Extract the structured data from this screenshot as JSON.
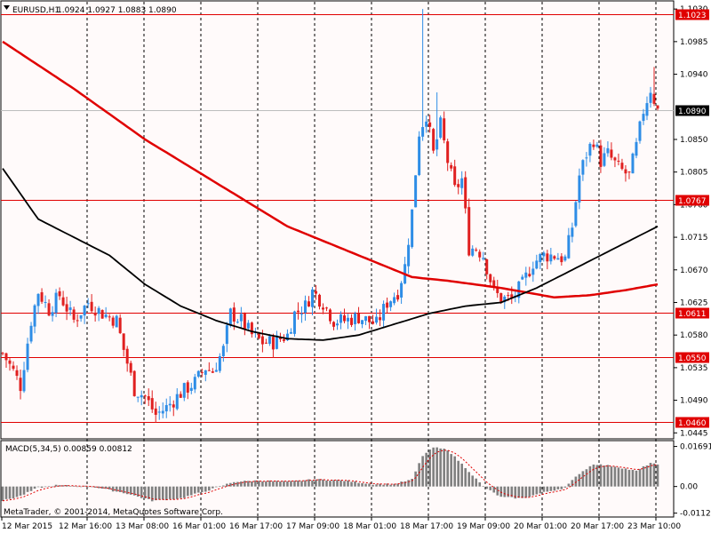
{
  "window": {
    "symbol_label": "EURUSD,H1",
    "ohlc_label": "1.0924 1.0927 1.0883 1.0890"
  },
  "macd": {
    "label": "MACD(5,34,5) 0.00859 0.00812",
    "ticks": [
      "0.01691",
      "0.00",
      "-0.01124"
    ]
  },
  "copyright": "MetaTrader, © 2001-2014, MetaQuotes Software Corp.",
  "colors": {
    "background": "#fffafa",
    "grid": "#000000",
    "level": "#e00000",
    "bull": "#2e8de6",
    "bear": "#e02020",
    "ma_fast": "#000000",
    "ma_slow": "#e00000",
    "macd_hist": "#808080",
    "macd_signal": "#e00000"
  },
  "chart_data": {
    "type": "candlestick",
    "ylim": [
      1.0438,
      1.104
    ],
    "price_ticks": [
      "1.1030",
      "1.0985",
      "1.0940",
      "1.0850",
      "1.0805",
      "1.0760",
      "1.0715",
      "1.0670",
      "1.0625",
      "1.0580",
      "1.0535",
      "1.0490",
      "1.0445"
    ],
    "levels": [
      {
        "value": 1.1023,
        "label": "1.1023"
      },
      {
        "value": 1.0767,
        "label": "1.0767"
      },
      {
        "value": 1.0611,
        "label": "1.0611"
      },
      {
        "value": 1.055,
        "label": "1.0550"
      },
      {
        "value": 1.046,
        "label": "1.0460"
      }
    ],
    "current_price": {
      "value": 1.089,
      "label": "1.0890"
    },
    "time_labels": [
      "12 Mar 2015",
      "12 Mar 16:00",
      "13 Mar 08:00",
      "16 Mar 01:00",
      "16 Mar 17:00",
      "17 Mar 09:00",
      "18 Mar 01:00",
      "18 Mar 17:00",
      "19 Mar 09:00",
      "20 Mar 01:00",
      "20 Mar 17:00",
      "23 Mar 10:00"
    ],
    "close_path": [
      [
        0,
        1.0555
      ],
      [
        3,
        1.053
      ],
      [
        5,
        1.051
      ],
      [
        8,
        1.06
      ],
      [
        10,
        1.064
      ],
      [
        13,
        1.0615
      ],
      [
        16,
        1.0635
      ],
      [
        20,
        1.06
      ],
      [
        24,
        1.0625
      ],
      [
        28,
        1.061
      ],
      [
        32,
        1.06
      ],
      [
        34,
        1.056
      ],
      [
        37,
        1.0505
      ],
      [
        40,
        1.0495
      ],
      [
        43,
        1.047
      ],
      [
        46,
        1.048
      ],
      [
        50,
        1.05
      ],
      [
        54,
        1.0515
      ],
      [
        57,
        1.0535
      ],
      [
        59,
        1.053
      ],
      [
        62,
        1.056
      ],
      [
        64,
        1.061
      ],
      [
        67,
        1.06
      ],
      [
        70,
        1.058
      ],
      [
        73,
        1.057
      ],
      [
        76,
        1.057
      ],
      [
        80,
        1.058
      ],
      [
        82,
        1.061
      ],
      [
        85,
        1.062
      ],
      [
        87,
        1.064
      ],
      [
        90,
        1.0625
      ],
      [
        93,
        1.06
      ],
      [
        96,
        1.06
      ],
      [
        100,
        1.0605
      ],
      [
        105,
        1.0595
      ],
      [
        108,
        1.0625
      ],
      [
        111,
        1.064
      ],
      [
        113,
        1.0675
      ],
      [
        115,
        1.075
      ],
      [
        117,
        1.086
      ],
      [
        119,
        1.0885
      ],
      [
        121,
        1.083
      ],
      [
        123,
        1.087
      ],
      [
        125,
        1.082
      ],
      [
        127,
        1.078
      ],
      [
        129,
        1.0795
      ],
      [
        131,
        1.07
      ],
      [
        133,
        1.07
      ],
      [
        135,
        1.069
      ],
      [
        138,
        1.064
      ],
      [
        140,
        1.063
      ],
      [
        143,
        1.063
      ],
      [
        146,
        1.065
      ],
      [
        149,
        1.068
      ],
      [
        152,
        1.069
      ],
      [
        155,
        1.069
      ],
      [
        158,
        1.0685
      ],
      [
        160,
        1.073
      ],
      [
        162,
        1.08
      ],
      [
        164,
        1.083
      ],
      [
        166,
        1.085
      ],
      [
        168,
        1.082
      ],
      [
        170,
        1.083
      ],
      [
        173,
        1.081
      ],
      [
        176,
        1.08
      ],
      [
        178,
        1.084
      ],
      [
        180,
        1.089
      ],
      [
        182,
        1.092
      ],
      [
        184,
        1.089
      ]
    ],
    "ma_fast": [
      [
        0,
        1.081
      ],
      [
        10,
        1.074
      ],
      [
        20,
        1.0715
      ],
      [
        30,
        1.069
      ],
      [
        40,
        1.065
      ],
      [
        50,
        1.062
      ],
      [
        60,
        1.06
      ],
      [
        70,
        1.0585
      ],
      [
        80,
        1.0575
      ],
      [
        90,
        1.0573
      ],
      [
        100,
        1.058
      ],
      [
        110,
        1.0595
      ],
      [
        120,
        1.061
      ],
      [
        130,
        1.062
      ],
      [
        140,
        1.0625
      ],
      [
        150,
        1.0645
      ],
      [
        160,
        1.067
      ],
      [
        170,
        1.0695
      ],
      [
        180,
        1.072
      ],
      [
        184,
        1.073
      ]
    ],
    "ma_slow": [
      [
        0,
        1.0985
      ],
      [
        20,
        1.092
      ],
      [
        40,
        1.085
      ],
      [
        60,
        1.079
      ],
      [
        80,
        1.073
      ],
      [
        100,
        1.069
      ],
      [
        115,
        1.066
      ],
      [
        125,
        1.0655
      ],
      [
        140,
        1.0645
      ],
      [
        155,
        1.0632
      ],
      [
        165,
        1.0635
      ],
      [
        175,
        1.0642
      ],
      [
        184,
        1.065
      ]
    ],
    "macd_hist_path": [
      [
        0,
        -0.006
      ],
      [
        5,
        -0.004
      ],
      [
        10,
        -0.0005
      ],
      [
        15,
        0.0005
      ],
      [
        25,
        0.0
      ],
      [
        35,
        -0.003
      ],
      [
        42,
        -0.006
      ],
      [
        50,
        -0.005
      ],
      [
        58,
        -0.0015
      ],
      [
        65,
        0.002
      ],
      [
        72,
        0.0025
      ],
      [
        80,
        0.002
      ],
      [
        88,
        0.003
      ],
      [
        96,
        0.0025
      ],
      [
        104,
        0.001
      ],
      [
        110,
        0.001
      ],
      [
        115,
        0.003
      ],
      [
        118,
        0.013
      ],
      [
        121,
        0.0165
      ],
      [
        125,
        0.0155
      ],
      [
        130,
        0.008
      ],
      [
        135,
        0.0
      ],
      [
        140,
        -0.0045
      ],
      [
        146,
        -0.005
      ],
      [
        152,
        -0.0025
      ],
      [
        158,
        -0.0005
      ],
      [
        162,
        0.0055
      ],
      [
        166,
        0.0095
      ],
      [
        172,
        0.0085
      ],
      [
        178,
        0.0065
      ],
      [
        182,
        0.01
      ],
      [
        184,
        0.009
      ]
    ],
    "macd_ylim": [
      -0.0125,
      0.019
    ]
  }
}
